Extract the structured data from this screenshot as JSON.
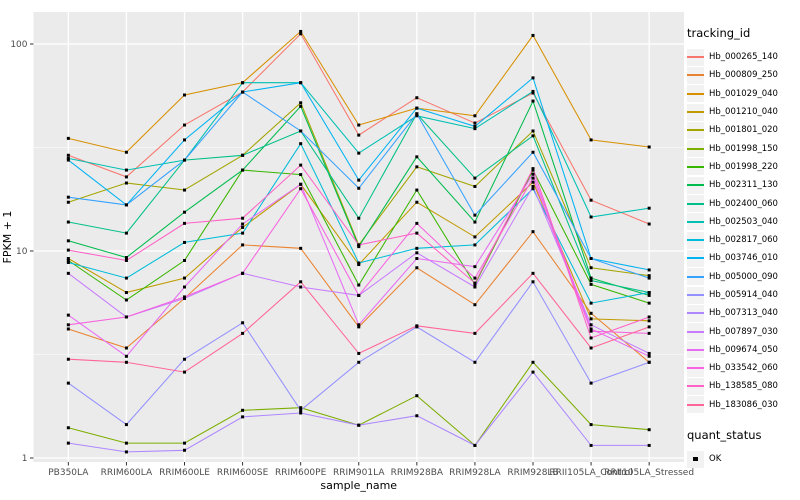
{
  "chart_data": {
    "type": "line",
    "title": "",
    "xlabel": "sample_name",
    "ylabel": "FPKM + 1",
    "y_scale": "log10",
    "y_ticks": [
      1,
      10,
      100
    ],
    "y_tick_labels": [
      "1",
      "10",
      "100"
    ],
    "y_minor_ticks": [
      3.1623,
      31.623
    ],
    "ylim": [
      0.95,
      143
    ],
    "grid": true,
    "panel_bg": "#EBEBEB",
    "grid_color": "#FFFFFF",
    "point_shape": "square",
    "point_color": "#000000",
    "x_categories": [
      "PB350LA",
      "RRIM600LA",
      "RRIM600LE",
      "RRIM600SE",
      "RRIM600PE",
      "RRIM901LA",
      "RRIM928BA",
      "RRIM928LA",
      "RRIM928LB",
      "RRII105LA_Control",
      "RRII105LA_Stressed"
    ],
    "series": [
      {
        "name": "Hb_000265_140",
        "color": "#F8766D",
        "values": [
          29,
          22.8,
          40.6,
          58.6,
          112,
          36.3,
          55,
          41.5,
          58,
          17.6,
          13.5
        ]
      },
      {
        "name": "Hb_000809_250",
        "color": "#EA8331",
        "values": [
          4.2,
          3.4,
          5.9,
          10.7,
          10.3,
          4.3,
          8.3,
          5.5,
          12.4,
          5.0,
          2.9
        ]
      },
      {
        "name": "Hb_001029_040",
        "color": "#D89000",
        "values": [
          35,
          30,
          56.7,
          65,
          115,
          40.6,
          49,
          45,
          110,
          34.4,
          31.8
        ]
      },
      {
        "name": "Hb_001210_040",
        "color": "#C09B00",
        "values": [
          9.2,
          6.3,
          7.4,
          13,
          21,
          8.6,
          17.2,
          11.7,
          21.5,
          4.7,
          4.6
        ]
      },
      {
        "name": "Hb_001801_020",
        "color": "#A3A500",
        "values": [
          17.2,
          21.3,
          19.7,
          29,
          52,
          10.7,
          25.5,
          20.5,
          38,
          8.3,
          7.6
        ]
      },
      {
        "name": "Hb_001998_150",
        "color": "#7CAE00",
        "values": [
          1.4,
          1.18,
          1.18,
          1.7,
          1.75,
          1.44,
          2.0,
          1.15,
          2.9,
          1.45,
          1.37
        ]
      },
      {
        "name": "Hb_001998_220",
        "color": "#39B600",
        "values": [
          9.0,
          5.8,
          9.0,
          24.6,
          23.4,
          6.85,
          19.7,
          6.9,
          24.6,
          6.9,
          5.6
        ]
      },
      {
        "name": "Hb_002311_130",
        "color": "#00BB4E",
        "values": [
          11.2,
          9.3,
          15.4,
          24.6,
          50,
          10.5,
          28.5,
          13.8,
          53,
          7.4,
          6.1
        ]
      },
      {
        "name": "Hb_002400_060",
        "color": "#00C087",
        "values": [
          13.8,
          12.2,
          27.5,
          29,
          38,
          14.4,
          46,
          22.5,
          36,
          7.2,
          6.3
        ]
      },
      {
        "name": "Hb_002503_040",
        "color": "#00C0B2",
        "values": [
          28,
          24.6,
          27.5,
          65,
          65,
          29.7,
          45,
          39,
          59,
          14.6,
          16.1
        ]
      },
      {
        "name": "Hb_002817_060",
        "color": "#00BCD8",
        "values": [
          8.8,
          7.4,
          11.0,
          12.2,
          33,
          8.75,
          10.3,
          10.7,
          20,
          5.6,
          6.3
        ]
      },
      {
        "name": "Hb_003746_010",
        "color": "#00B3F2",
        "values": [
          27.5,
          16.7,
          34.4,
          58.6,
          65,
          22,
          49,
          40,
          68.6,
          9.2,
          8.1
        ]
      },
      {
        "name": "Hb_005000_090",
        "color": "#35A2FF",
        "values": [
          18.2,
          16.7,
          27.5,
          58.6,
          38,
          20.1,
          46,
          14.9,
          30,
          9.2,
          7.4
        ]
      },
      {
        "name": "Hb_005914_040",
        "color": "#9590FF",
        "values": [
          2.3,
          1.45,
          3.0,
          4.5,
          1.7,
          2.9,
          4.3,
          2.9,
          7.1,
          2.3,
          2.9
        ]
      },
      {
        "name": "Hb_007313_040",
        "color": "#AE87FF",
        "values": [
          1.18,
          1.07,
          1.09,
          1.58,
          1.65,
          1.44,
          1.6,
          1.15,
          2.6,
          1.15,
          1.15
        ]
      },
      {
        "name": "Hb_007897_030",
        "color": "#C77CFF",
        "values": [
          7.8,
          4.8,
          5.9,
          7.8,
          6.7,
          6.1,
          9.8,
          6.7,
          20.5,
          4.4,
          3.2
        ]
      },
      {
        "name": "Hb_009674_050",
        "color": "#E76BF3",
        "values": [
          4.9,
          3.1,
          6.7,
          13.5,
          21,
          4.4,
          9.2,
          8.4,
          23.5,
          4.2,
          3.1
        ]
      },
      {
        "name": "Hb_033542_060",
        "color": "#F763E0",
        "values": [
          4.4,
          4.8,
          6.0,
          7.8,
          20,
          6.1,
          13.6,
          7.4,
          22.5,
          4.1,
          4.0
        ]
      },
      {
        "name": "Hb_138585_080",
        "color": "#FF61C7",
        "values": [
          10.1,
          9.0,
          13.6,
          14.4,
          26,
          10.7,
          12.2,
          7.0,
          25,
          3.8,
          4.8
        ]
      },
      {
        "name": "Hb_183086_030",
        "color": "#FF6598",
        "values": [
          3.0,
          2.9,
          2.6,
          4.0,
          7.1,
          3.2,
          4.35,
          4.0,
          7.8,
          3.4,
          4.3
        ]
      }
    ]
  },
  "legend": {
    "tracking_title": "tracking_id",
    "quant_title": "quant_status",
    "quant_items": [
      {
        "label": "OK",
        "marker": "black-square"
      }
    ]
  }
}
